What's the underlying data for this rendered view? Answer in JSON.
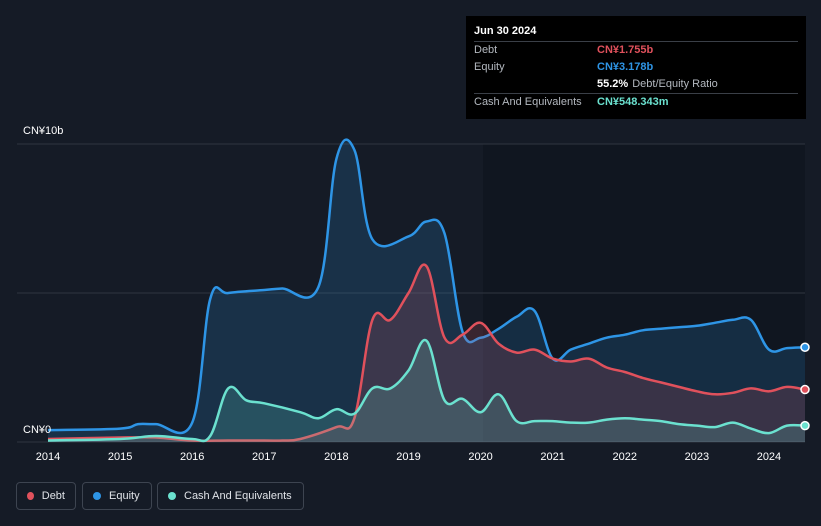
{
  "tooltip": {
    "date": "Jun 30 2024",
    "debt_label": "Debt",
    "debt_value": "CN¥1.755b",
    "equity_label": "Equity",
    "equity_value": "CN¥3.178b",
    "ratio_value": "55.2%",
    "ratio_label": "Debt/Equity Ratio",
    "cash_label": "Cash And Equivalents",
    "cash_value": "CN¥548.343m"
  },
  "legend": {
    "debt": "Debt",
    "equity": "Equity",
    "cash": "Cash And Equivalents"
  },
  "colors": {
    "debt": "#e0515c",
    "equity": "#2e95e6",
    "cash": "#6be1cf",
    "background": "#151b26"
  },
  "chart_data": {
    "type": "area",
    "title": "",
    "xlabel": "",
    "ylabel": "",
    "y_top_label": "CN¥10b",
    "y_bottom_label": "CN¥0",
    "ylim": [
      0,
      10
    ],
    "xlim": [
      2014.0,
      2024.5
    ],
    "x_ticks": [
      "2014",
      "2015",
      "2016",
      "2017",
      "2018",
      "2019",
      "2020",
      "2021",
      "2022",
      "2023",
      "2024"
    ],
    "series": [
      {
        "name": "Equity",
        "x": [
          2014.0,
          2015.0,
          2015.25,
          2015.5,
          2016.0,
          2016.25,
          2016.5,
          2017.0,
          2017.25,
          2017.75,
          2018.0,
          2018.25,
          2018.5,
          2019.0,
          2019.25,
          2019.5,
          2019.75,
          2020.0,
          2020.25,
          2020.5,
          2020.75,
          2021.0,
          2021.25,
          2021.5,
          2021.75,
          2022.0,
          2022.25,
          2022.5,
          2022.75,
          2023.0,
          2023.25,
          2023.5,
          2023.75,
          2024.0,
          2024.25,
          2024.5
        ],
        "values": [
          0.4,
          0.45,
          0.6,
          0.6,
          0.65,
          4.8,
          5.0,
          5.1,
          5.15,
          5.2,
          9.5,
          9.8,
          6.8,
          6.9,
          7.4,
          7.0,
          3.7,
          3.5,
          3.8,
          4.2,
          4.4,
          2.8,
          3.1,
          3.3,
          3.5,
          3.6,
          3.75,
          3.8,
          3.85,
          3.9,
          4.0,
          4.1,
          4.1,
          3.1,
          3.15,
          3.18
        ]
      },
      {
        "name": "Debt",
        "x": [
          2014.0,
          2015.0,
          2015.5,
          2016.0,
          2016.5,
          2017.0,
          2017.25,
          2017.5,
          2018.0,
          2018.25,
          2018.5,
          2018.75,
          2019.0,
          2019.25,
          2019.5,
          2019.75,
          2020.0,
          2020.25,
          2020.5,
          2020.75,
          2021.0,
          2021.25,
          2021.5,
          2021.75,
          2022.0,
          2022.25,
          2022.5,
          2022.75,
          2023.0,
          2023.25,
          2023.5,
          2023.75,
          2024.0,
          2024.25,
          2024.5
        ],
        "values": [
          0.1,
          0.15,
          0.15,
          0.05,
          0.05,
          0.05,
          0.05,
          0.1,
          0.5,
          0.8,
          4.1,
          4.1,
          5.0,
          5.9,
          3.5,
          3.6,
          4.0,
          3.3,
          3.0,
          3.1,
          2.8,
          2.7,
          2.8,
          2.5,
          2.35,
          2.15,
          2.0,
          1.85,
          1.7,
          1.6,
          1.65,
          1.8,
          1.7,
          1.85,
          1.76
        ]
      },
      {
        "name": "Cash And Equivalents",
        "x": [
          2014.0,
          2015.0,
          2015.5,
          2016.0,
          2016.25,
          2016.5,
          2016.75,
          2017.0,
          2017.5,
          2017.75,
          2018.0,
          2018.25,
          2018.5,
          2018.75,
          2019.0,
          2019.25,
          2019.5,
          2019.75,
          2020.0,
          2020.25,
          2020.5,
          2020.75,
          2021.0,
          2021.25,
          2021.5,
          2021.75,
          2022.0,
          2022.25,
          2022.5,
          2022.75,
          2023.0,
          2023.25,
          2023.5,
          2023.75,
          2024.0,
          2024.25,
          2024.5
        ],
        "values": [
          0.05,
          0.1,
          0.2,
          0.1,
          0.2,
          1.8,
          1.4,
          1.3,
          1.0,
          0.8,
          1.1,
          0.95,
          1.8,
          1.8,
          2.4,
          3.4,
          1.4,
          1.45,
          1.0,
          1.6,
          0.7,
          0.7,
          0.7,
          0.65,
          0.65,
          0.75,
          0.8,
          0.75,
          0.7,
          0.6,
          0.55,
          0.5,
          0.65,
          0.45,
          0.3,
          0.55,
          0.55
        ]
      }
    ]
  }
}
